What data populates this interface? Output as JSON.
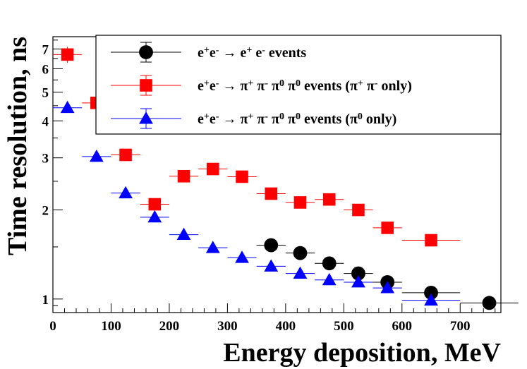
{
  "chart_data": {
    "type": "scatter",
    "title": "",
    "xlabel": "Energy deposition, MeV",
    "ylabel": "Time resolution, ns",
    "xlim": [
      0,
      770
    ],
    "ylim": [
      0.9,
      7.7
    ],
    "y_scale": "log",
    "grid": false,
    "legend_position": "top-right",
    "x_ticks": [
      0,
      100,
      200,
      300,
      400,
      500,
      600,
      700
    ],
    "y_ticks": [
      1,
      2,
      3,
      4,
      5,
      6,
      7
    ],
    "series": [
      {
        "name": "e+e- → e+ e- events",
        "legend_parts": {
          "pre": "e",
          "s1": "+",
          "mid1": "e",
          "s2": "-",
          "arrow": " → e",
          "s3": "+",
          "mid2": " e",
          "s4": "-",
          "post": " events"
        },
        "color": "#000000",
        "marker": "circle",
        "points": [
          {
            "x": 375,
            "y": 1.52,
            "xerr": 25,
            "yerr": 0.05
          },
          {
            "x": 425,
            "y": 1.43,
            "xerr": 25,
            "yerr": 0.05
          },
          {
            "x": 475,
            "y": 1.32,
            "xerr": 25,
            "yerr": 0.04
          },
          {
            "x": 525,
            "y": 1.22,
            "xerr": 25,
            "yerr": 0.04
          },
          {
            "x": 575,
            "y": 1.14,
            "xerr": 25,
            "yerr": 0.03
          },
          {
            "x": 650,
            "y": 1.05,
            "xerr": 50,
            "yerr": 0.03
          },
          {
            "x": 750,
            "y": 0.97,
            "xerr": 50,
            "yerr": 0.03
          }
        ]
      },
      {
        "name": "e+e- → π+ π- π0 π0 events (π+ π- only)",
        "legend_parts": {
          "pre": "e",
          "s1": "+",
          "mid1": "e",
          "s2": "-",
          "arrow": " → π",
          "s3": "+",
          "mid2": " π",
          "s4": "-",
          "mid3": " π",
          "s5": "0",
          "mid4": " π",
          "s6": "0",
          "mid5": " events (π",
          "s7": "+",
          "mid6": " π",
          "s8": "-",
          "post": " only)"
        },
        "color": "#ff0000",
        "marker": "square",
        "points": [
          {
            "x": 25,
            "y": 6.7,
            "xerr": 25,
            "yerr": 0.42
          },
          {
            "x": 75,
            "y": 4.6,
            "xerr": 25,
            "yerr": 0.12
          },
          {
            "x": 125,
            "y": 3.07,
            "xerr": 25,
            "yerr": 0.08
          },
          {
            "x": 175,
            "y": 2.09,
            "xerr": 25,
            "yerr": 0.06
          },
          {
            "x": 225,
            "y": 2.6,
            "xerr": 25,
            "yerr": 0.08
          },
          {
            "x": 275,
            "y": 2.75,
            "xerr": 25,
            "yerr": 0.09
          },
          {
            "x": 325,
            "y": 2.59,
            "xerr": 25,
            "yerr": 0.08
          },
          {
            "x": 375,
            "y": 2.27,
            "xerr": 25,
            "yerr": 0.07
          },
          {
            "x": 425,
            "y": 2.12,
            "xerr": 25,
            "yerr": 0.07
          },
          {
            "x": 475,
            "y": 2.17,
            "xerr": 25,
            "yerr": 0.07
          },
          {
            "x": 525,
            "y": 2.0,
            "xerr": 25,
            "yerr": 0.06
          },
          {
            "x": 575,
            "y": 1.74,
            "xerr": 25,
            "yerr": 0.06
          },
          {
            "x": 650,
            "y": 1.58,
            "xerr": 50,
            "yerr": 0.05
          }
        ]
      },
      {
        "name": "e+e- → π+ π- π0 π0 events (π0 only)",
        "legend_parts": {
          "pre": "e",
          "s1": "+",
          "mid1": "e",
          "s2": "-",
          "arrow": " → π",
          "s3": "+",
          "mid2": " π",
          "s4": "-",
          "mid3": " π",
          "s5": "0",
          "mid4": " π",
          "s6": "0",
          "mid5": " events (π",
          "s7": "0",
          "post": " only)"
        },
        "color": "#0000ff",
        "marker": "triangle",
        "points": [
          {
            "x": 25,
            "y": 4.43,
            "xerr": 25,
            "yerr": 0.07
          },
          {
            "x": 75,
            "y": 3.03,
            "xerr": 25,
            "yerr": 0.05
          },
          {
            "x": 125,
            "y": 2.28,
            "xerr": 25,
            "yerr": 0.04
          },
          {
            "x": 175,
            "y": 1.89,
            "xerr": 25,
            "yerr": 0.04
          },
          {
            "x": 225,
            "y": 1.65,
            "xerr": 25,
            "yerr": 0.03
          },
          {
            "x": 275,
            "y": 1.49,
            "xerr": 25,
            "yerr": 0.03
          },
          {
            "x": 325,
            "y": 1.38,
            "xerr": 25,
            "yerr": 0.03
          },
          {
            "x": 375,
            "y": 1.29,
            "xerr": 25,
            "yerr": 0.03
          },
          {
            "x": 425,
            "y": 1.22,
            "xerr": 25,
            "yerr": 0.03
          },
          {
            "x": 475,
            "y": 1.16,
            "xerr": 25,
            "yerr": 0.03
          },
          {
            "x": 525,
            "y": 1.14,
            "xerr": 25,
            "yerr": 0.03
          },
          {
            "x": 575,
            "y": 1.09,
            "xerr": 25,
            "yerr": 0.03
          },
          {
            "x": 650,
            "y": 0.99,
            "xerr": 50,
            "yerr": 0.03
          }
        ]
      }
    ]
  }
}
